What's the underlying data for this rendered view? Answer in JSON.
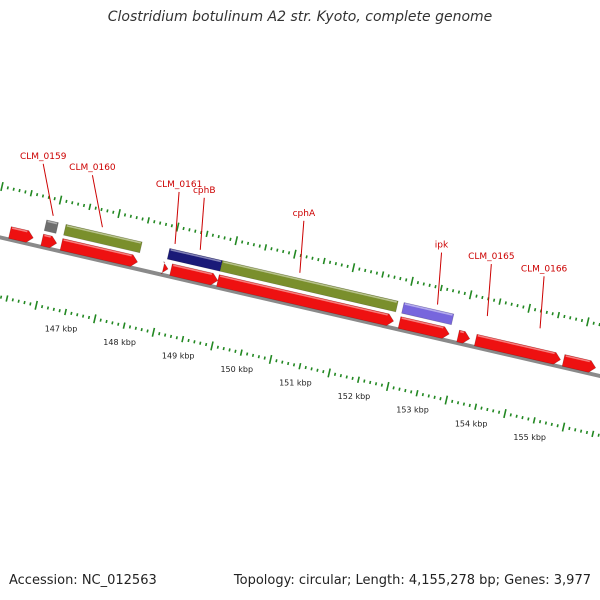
{
  "title": "Clostridium botulinum A2 str. Kyoto, complete genome",
  "footer": {
    "accession": "Accession: NC_012563",
    "summary": "Topology: circular; Length: 4,155,278 bp; Genes: 3,977"
  },
  "colors": {
    "cds": "#ee1111",
    "green": "#7a8f2c",
    "navy": "#1a1a78",
    "violet": "#7766dd",
    "gray": "#6e6e6e",
    "backbone": "#8a8a8a",
    "tick": "#228822",
    "label": "#cc0000"
  },
  "scale": {
    "unit": "kbp",
    "labels": [
      "147 kbp",
      "148 kbp",
      "149 kbp",
      "150 kbp",
      "151 kbp",
      "152 kbp",
      "153 kbp",
      "154 kbp",
      "155 kbp"
    ]
  },
  "features": [
    {
      "name": "",
      "track": "upper",
      "start": 146.35,
      "end": 146.55,
      "type": "other",
      "color": "gray"
    },
    {
      "name": "",
      "track": "upper",
      "start": 146.68,
      "end": 147.98,
      "type": "gene",
      "color": "green"
    },
    {
      "name": "",
      "track": "upper",
      "start": 148.45,
      "end": 149.35,
      "type": "gene",
      "color": "navy"
    },
    {
      "name": "",
      "track": "upper",
      "start": 149.35,
      "end": 152.35,
      "type": "gene",
      "color": "green"
    },
    {
      "name": "",
      "track": "upper",
      "start": 152.45,
      "end": 153.3,
      "type": "gene",
      "color": "violet"
    },
    {
      "name": "",
      "track": "lower",
      "start": 145.8,
      "end": 146.2,
      "type": "cds",
      "color": "cds"
    },
    {
      "name": "",
      "track": "lower",
      "start": 146.35,
      "end": 146.6,
      "type": "cds",
      "color": "cds"
    },
    {
      "name": "",
      "track": "lower",
      "start": 146.68,
      "end": 147.98,
      "type": "cds",
      "color": "cds"
    },
    {
      "name": "",
      "track": "lower",
      "start": 148.42,
      "end": 148.5,
      "type": "cds",
      "color": "cds"
    },
    {
      "name": "",
      "track": "lower",
      "start": 148.55,
      "end": 149.35,
      "type": "cds",
      "color": "cds"
    },
    {
      "name": "",
      "track": "lower",
      "start": 149.35,
      "end": 152.35,
      "type": "cds",
      "color": "cds"
    },
    {
      "name": "",
      "track": "lower",
      "start": 152.45,
      "end": 153.3,
      "type": "cds",
      "color": "cds"
    },
    {
      "name": "",
      "track": "lower",
      "start": 153.45,
      "end": 153.65,
      "type": "cds",
      "color": "cds"
    },
    {
      "name": "",
      "track": "lower",
      "start": 153.75,
      "end": 155.2,
      "type": "cds",
      "color": "cds"
    },
    {
      "name": "",
      "track": "lower",
      "start": 155.25,
      "end": 155.8,
      "type": "cds",
      "color": "cds"
    }
  ],
  "labels": [
    {
      "name": "CLM_0159",
      "pos": 146.44
    },
    {
      "name": "CLM_0160",
      "pos": 147.28
    },
    {
      "name": "CLM_0161",
      "pos": 148.52
    },
    {
      "name": "cphB",
      "pos": 148.95
    },
    {
      "name": "cphA",
      "pos": 150.65
    },
    {
      "name": "ipk",
      "pos": 153.0
    },
    {
      "name": "CLM_0165",
      "pos": 153.85
    },
    {
      "name": "CLM_0166",
      "pos": 154.75
    }
  ]
}
